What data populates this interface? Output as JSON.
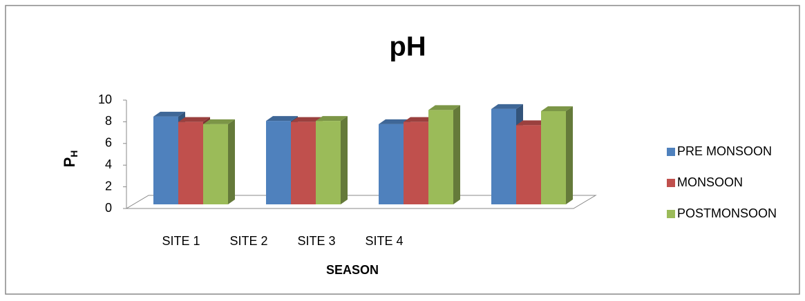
{
  "chart_data": {
    "type": "bar3d",
    "title": "pH",
    "x_label": "SEASON",
    "y_label": "P",
    "y_label_subscript": "H",
    "categories": [
      "SITE 1",
      "SITE 2",
      "SITE 3",
      "SITE 4"
    ],
    "series": [
      {
        "name": "PRE MONSOON",
        "color": "#4f81bd",
        "values": [
          8.1,
          7.7,
          7.4,
          8.8
        ]
      },
      {
        "name": "MONSOON",
        "color": "#c0504d",
        "values": [
          7.6,
          7.6,
          7.6,
          7.3
        ]
      },
      {
        "name": "POSTMONSOON",
        "color": "#9bbb59",
        "values": [
          7.4,
          7.7,
          8.7,
          8.6
        ]
      }
    ],
    "ylim": [
      0,
      10
    ],
    "yticks": [
      0,
      2,
      4,
      6,
      8,
      10
    ],
    "legend": "right"
  }
}
